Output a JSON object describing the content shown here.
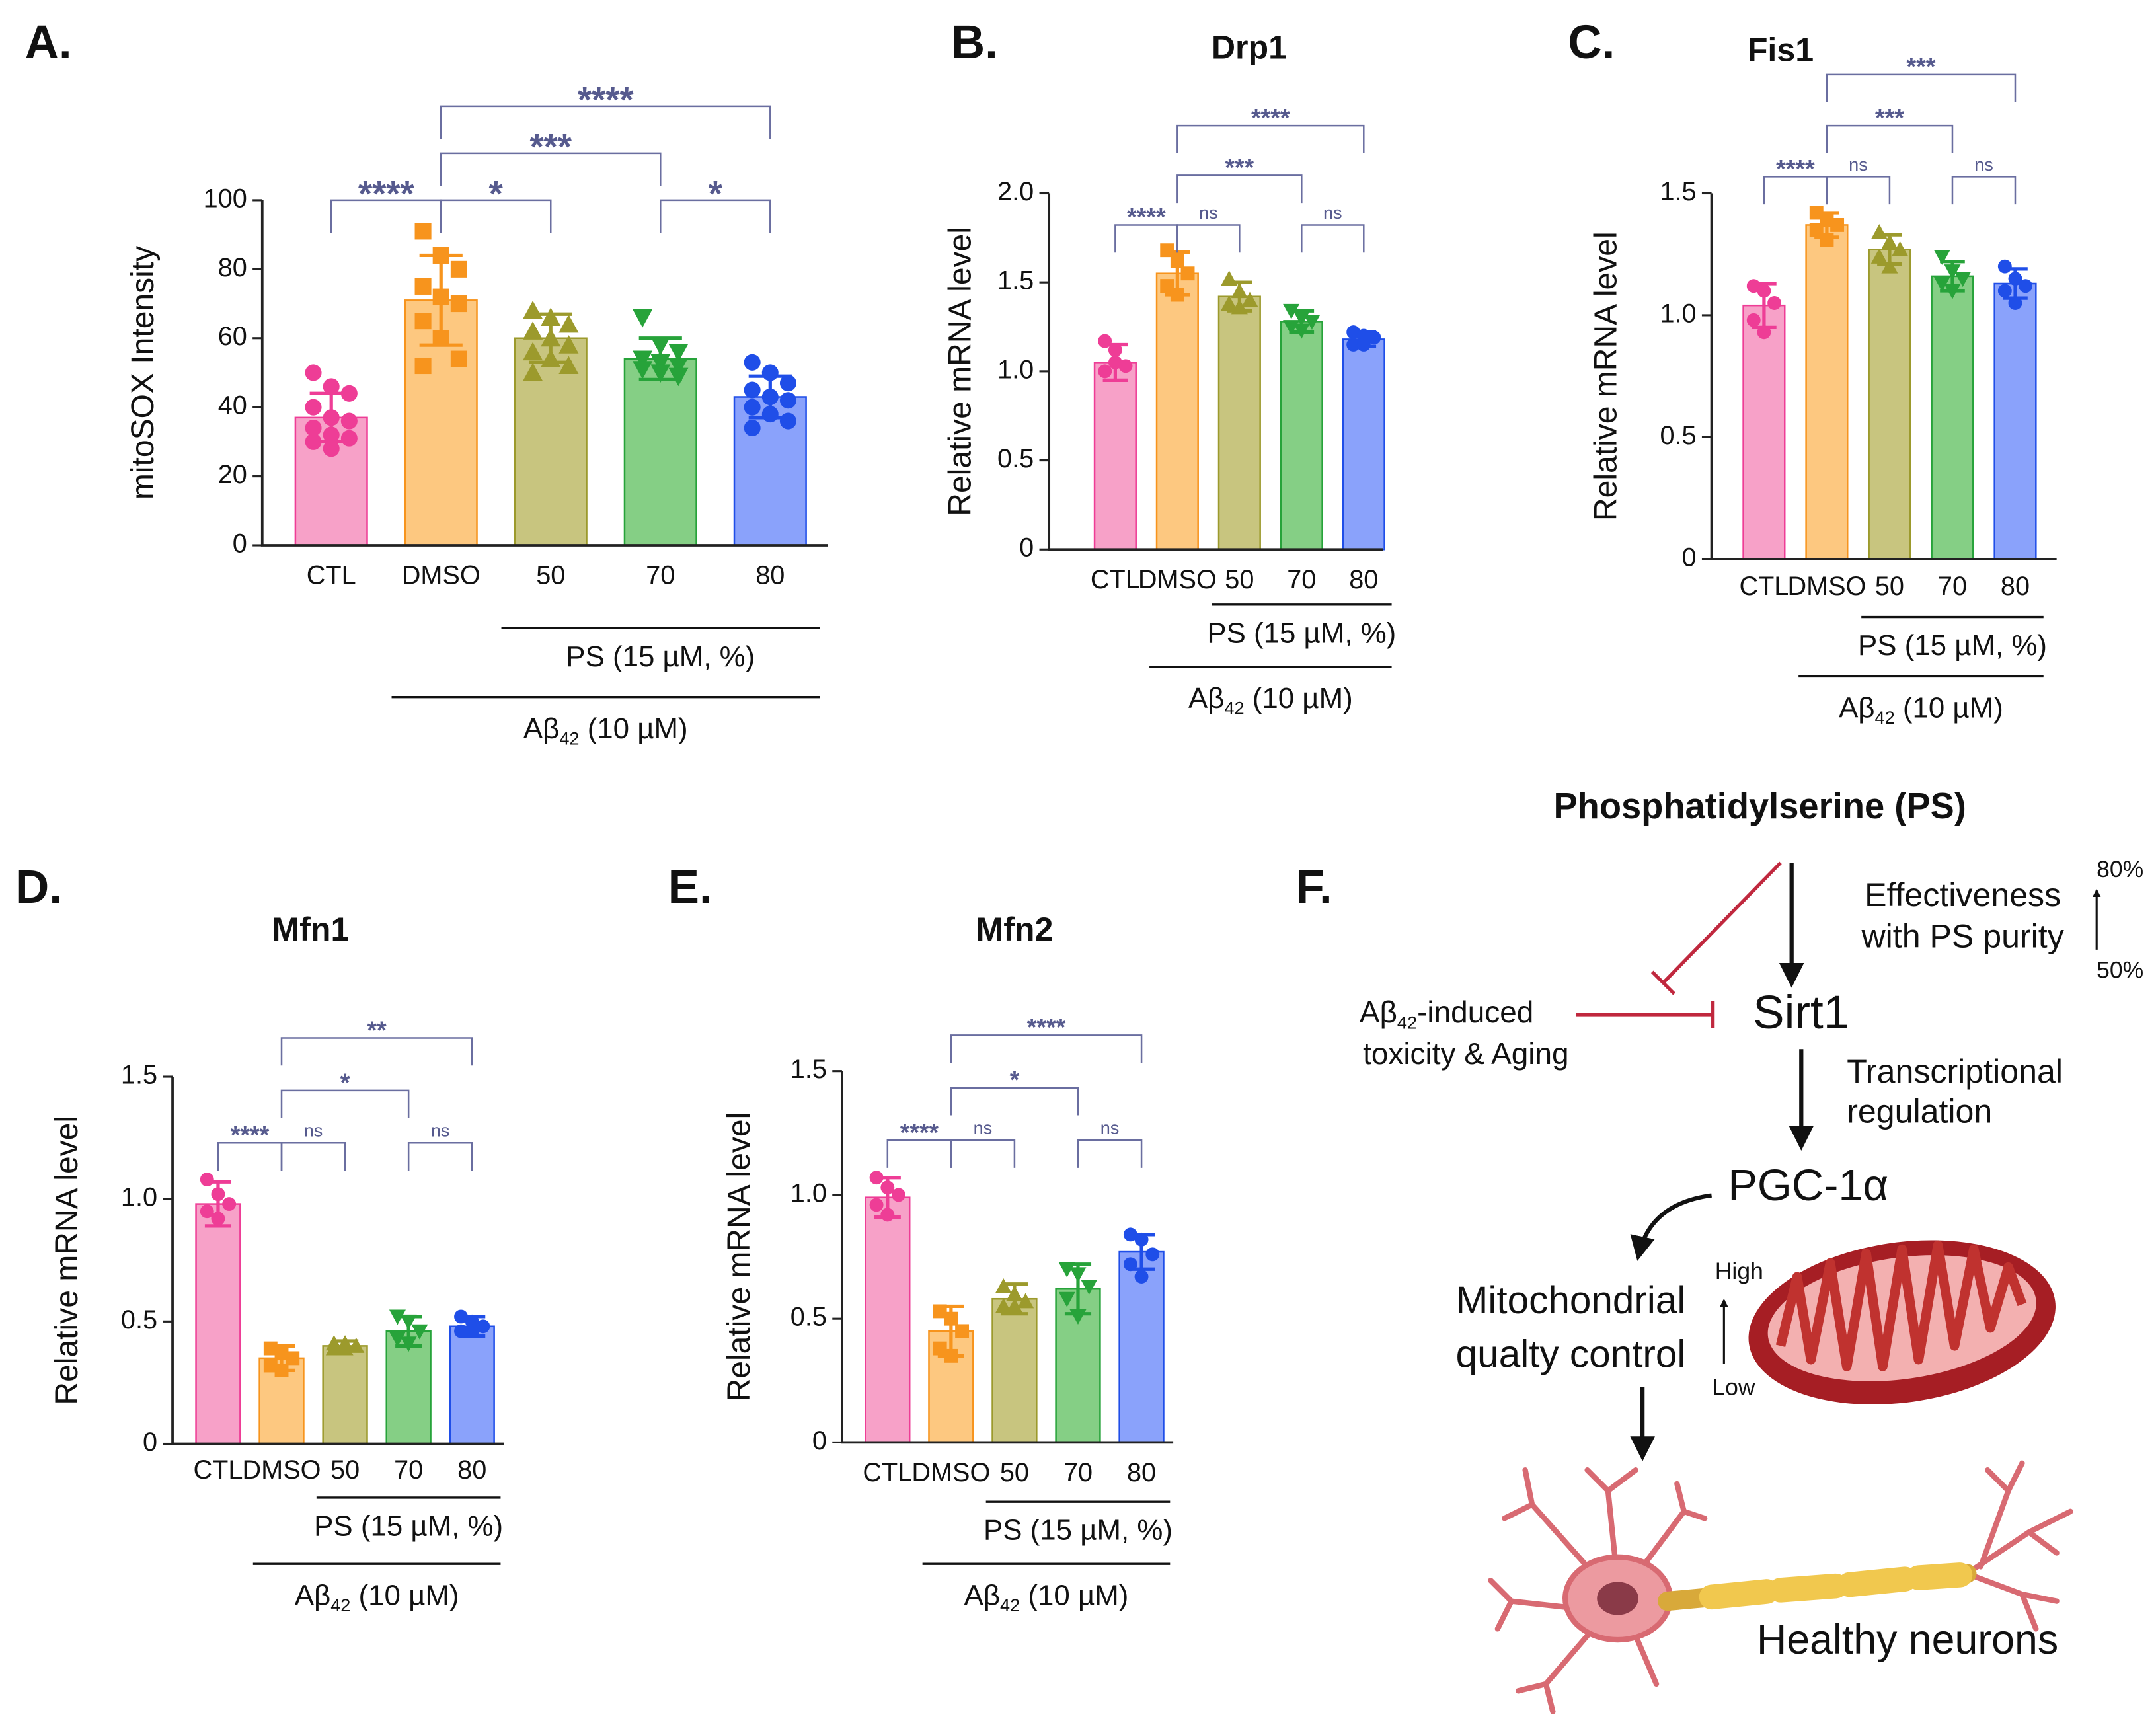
{
  "chart_data": [
    {
      "type": "bar",
      "panel_label": "A.",
      "y_label": "mitoSOX Intensity",
      "categories": [
        "CTL",
        "DMSO",
        "50",
        "70",
        "80"
      ],
      "values": [
        37,
        71,
        60,
        54,
        43
      ],
      "errors": [
        7,
        13,
        7,
        6,
        6
      ],
      "points": [
        [
          50,
          46,
          44,
          40,
          37,
          36,
          34,
          32,
          31,
          30,
          28
        ],
        [
          91,
          84,
          80,
          75,
          72,
          70,
          65,
          60,
          54,
          52
        ],
        [
          68,
          66,
          64,
          62,
          60,
          58,
          56,
          54,
          52,
          50
        ],
        [
          66,
          58,
          56,
          54,
          53,
          52,
          51,
          50,
          49
        ],
        [
          53,
          50,
          47,
          45,
          43,
          42,
          40,
          38,
          36,
          34
        ]
      ],
      "colors": [
        "#ee3d96",
        "#f7941d",
        "#9c9a2c",
        "#27a33a",
        "#1f4ee8"
      ],
      "fill_colors": [
        "#f7a1c8",
        "#fdc880",
        "#c8c57f",
        "#85cf85",
        "#8aa2fb"
      ],
      "markers": [
        "circle",
        "square",
        "triangle",
        "triangle-down",
        "circle"
      ],
      "ylim": [
        0,
        100
      ],
      "yticks": [
        0,
        20,
        40,
        60,
        80,
        100
      ],
      "comparisons": [
        {
          "pair": [
            0,
            1
          ],
          "label": "****"
        },
        {
          "pair": [
            1,
            2
          ],
          "label": "*"
        },
        {
          "pair": [
            3,
            4
          ],
          "label": "*"
        },
        {
          "pair": [
            1,
            3
          ],
          "label": "***"
        },
        {
          "pair": [
            1,
            4
          ],
          "label": "****"
        }
      ],
      "treatment": "PS (15 µM, %)",
      "vehicle": {
        "text": "Aβ",
        "sub": "42",
        "rest": " (10 µM)"
      }
    },
    {
      "type": "bar",
      "panel_label": "B.",
      "title": "Drp1",
      "y_label": "Relative mRNA level",
      "categories": [
        "CTL",
        "DMSO",
        "50",
        "70",
        "80"
      ],
      "values": [
        1.05,
        1.55,
        1.42,
        1.28,
        1.18
      ],
      "errors": [
        0.1,
        0.12,
        0.08,
        0.06,
        0.04
      ],
      "points": [
        [
          1.17,
          1.12,
          1.03,
          1.0,
          1.05
        ],
        [
          1.68,
          1.62,
          1.55,
          1.48,
          1.43
        ],
        [
          1.52,
          1.45,
          1.4,
          1.38,
          1.36
        ],
        [
          1.34,
          1.3,
          1.28,
          1.25,
          1.23
        ],
        [
          1.22,
          1.2,
          1.19,
          1.15,
          1.15
        ]
      ],
      "colors": [
        "#ee3d96",
        "#f7941d",
        "#9c9a2c",
        "#27a33a",
        "#1f4ee8"
      ],
      "fill_colors": [
        "#f7a1c8",
        "#fdc880",
        "#c8c57f",
        "#85cf85",
        "#8aa2fb"
      ],
      "markers": [
        "circle",
        "square",
        "triangle",
        "triangle-down",
        "circle"
      ],
      "ylim": [
        0,
        2
      ],
      "yticks": [
        0,
        0.5,
        {
          "value": 1,
          "label": "1.0"
        },
        1.5,
        {
          "value": 2,
          "label": "2.0"
        }
      ],
      "comparisons": [
        {
          "pair": [
            0,
            1
          ],
          "label": "****"
        },
        {
          "pair": [
            1,
            2
          ],
          "label": "ns"
        },
        {
          "pair": [
            3,
            4
          ],
          "label": "ns"
        },
        {
          "pair": [
            1,
            3
          ],
          "label": "***"
        },
        {
          "pair": [
            1,
            4
          ],
          "label": "****"
        }
      ],
      "treatment": "PS (15 µM, %)",
      "vehicle": {
        "text": "Aβ",
        "sub": "42",
        "rest": " (10 µM)"
      }
    },
    {
      "type": "bar",
      "panel_label": "C.",
      "title": "Fis1",
      "y_label": "Relative mRNA level",
      "categories": [
        "CTL",
        "DMSO",
        "50",
        "70",
        "80"
      ],
      "values": [
        1.04,
        1.37,
        1.27,
        1.16,
        1.13
      ],
      "errors": [
        0.09,
        0.05,
        0.06,
        0.06,
        0.06
      ],
      "points": [
        [
          1.12,
          1.1,
          1.05,
          0.98,
          0.93
        ],
        [
          1.42,
          1.39,
          1.37,
          1.35,
          1.31
        ],
        [
          1.34,
          1.3,
          1.27,
          1.24,
          1.2
        ],
        [
          1.24,
          1.18,
          1.15,
          1.13,
          1.1
        ],
        [
          1.2,
          1.15,
          1.12,
          1.1,
          1.05
        ]
      ],
      "colors": [
        "#ee3d96",
        "#f7941d",
        "#9c9a2c",
        "#27a33a",
        "#1f4ee8"
      ],
      "fill_colors": [
        "#f7a1c8",
        "#fdc880",
        "#c8c57f",
        "#85cf85",
        "#8aa2fb"
      ],
      "markers": [
        "circle",
        "square",
        "triangle",
        "triangle-down",
        "circle"
      ],
      "ylim": [
        0,
        1.5
      ],
      "yticks": [
        0,
        0.5,
        {
          "value": 1,
          "label": "1.0"
        },
        1.5
      ],
      "comparisons": [
        {
          "pair": [
            0,
            1
          ],
          "label": "****"
        },
        {
          "pair": [
            1,
            2
          ],
          "label": "ns"
        },
        {
          "pair": [
            3,
            4
          ],
          "label": "ns"
        },
        {
          "pair": [
            1,
            3
          ],
          "label": "***"
        },
        {
          "pair": [
            1,
            4
          ],
          "label": "***"
        }
      ],
      "treatment": "PS (15 µM, %)",
      "vehicle": {
        "text": "Aβ",
        "sub": "42",
        "rest": " (10 µM)"
      }
    },
    {
      "type": "bar",
      "panel_label": "D.",
      "title": "Mfn1",
      "y_label": "Relative mRNA level",
      "categories": [
        "CTL",
        "DMSO",
        "50",
        "70",
        "80"
      ],
      "values": [
        0.98,
        0.35,
        0.4,
        0.46,
        0.48
      ],
      "errors": [
        0.09,
        0.05,
        0.02,
        0.06,
        0.04
      ],
      "points": [
        [
          1.08,
          1.02,
          0.98,
          0.95,
          0.92
        ],
        [
          0.39,
          0.37,
          0.35,
          0.32,
          0.3
        ],
        [
          0.41,
          0.41,
          0.4,
          0.39,
          0.39
        ],
        [
          0.52,
          0.5,
          0.46,
          0.43,
          0.41
        ],
        [
          0.52,
          0.5,
          0.48,
          0.46,
          0.46
        ]
      ],
      "colors": [
        "#ee3d96",
        "#f7941d",
        "#9c9a2c",
        "#27a33a",
        "#1f4ee8"
      ],
      "fill_colors": [
        "#f7a1c8",
        "#fdc880",
        "#c8c57f",
        "#85cf85",
        "#8aa2fb"
      ],
      "markers": [
        "circle",
        "square",
        "triangle",
        "triangle-down",
        "circle"
      ],
      "ylim": [
        0,
        1.5
      ],
      "yticks": [
        0,
        0.5,
        {
          "value": 1,
          "label": "1.0"
        },
        1.5
      ],
      "comparisons": [
        {
          "pair": [
            0,
            1
          ],
          "label": "****"
        },
        {
          "pair": [
            1,
            2
          ],
          "label": "ns"
        },
        {
          "pair": [
            3,
            4
          ],
          "label": "ns"
        },
        {
          "pair": [
            1,
            3
          ],
          "label": "*"
        },
        {
          "pair": [
            1,
            4
          ],
          "label": "**"
        }
      ],
      "treatment": "PS (15 µM, %)",
      "vehicle": {
        "text": "Aβ",
        "sub": "42",
        "rest": " (10 µM)"
      }
    },
    {
      "type": "bar",
      "panel_label": "E.",
      "title": "Mfn2",
      "y_label": "Relative mRNA level",
      "categories": [
        "CTL",
        "DMSO",
        "50",
        "70",
        "80"
      ],
      "values": [
        0.99,
        0.45,
        0.58,
        0.62,
        0.77
      ],
      "errors": [
        0.08,
        0.1,
        0.06,
        0.1,
        0.07
      ],
      "points": [
        [
          1.07,
          1.03,
          1.0,
          0.96,
          0.92
        ],
        [
          0.53,
          0.5,
          0.45,
          0.38,
          0.35
        ],
        [
          0.63,
          0.6,
          0.57,
          0.55,
          0.55
        ],
        [
          0.7,
          0.68,
          0.63,
          0.58,
          0.51
        ],
        [
          0.84,
          0.82,
          0.76,
          0.72,
          0.67
        ]
      ],
      "colors": [
        "#ee3d96",
        "#f7941d",
        "#9c9a2c",
        "#27a33a",
        "#1f4ee8"
      ],
      "fill_colors": [
        "#f7a1c8",
        "#fdc880",
        "#c8c57f",
        "#85cf85",
        "#8aa2fb"
      ],
      "markers": [
        "circle",
        "square",
        "triangle",
        "triangle-down",
        "circle"
      ],
      "ylim": [
        0,
        1.5
      ],
      "yticks": [
        0,
        0.5,
        {
          "value": 1,
          "label": "1.0"
        },
        1.5
      ],
      "comparisons": [
        {
          "pair": [
            0,
            1
          ],
          "label": "****"
        },
        {
          "pair": [
            1,
            2
          ],
          "label": "ns"
        },
        {
          "pair": [
            3,
            4
          ],
          "label": "ns"
        },
        {
          "pair": [
            1,
            3
          ],
          "label": "*"
        },
        {
          "pair": [
            1,
            4
          ],
          "label": "****"
        }
      ],
      "treatment": "PS (15 µM, %)",
      "vehicle": {
        "text": "Aβ",
        "sub": "42",
        "rest": " (10 µM)"
      }
    }
  ],
  "diagram": {
    "panel_label": "F.",
    "source": "Phosphatidylserine (PS)",
    "effect": [
      "Effectiveness",
      "with PS purity"
    ],
    "purity_high": "80%",
    "purity_low": "50%",
    "target": "Sirt1",
    "stressor": {
      "text": "Aβ",
      "sub": "42",
      "rest": "-induced"
    },
    "stressor_2": "toxicity & Aging",
    "mechanism": [
      "Transcriptional",
      "regulation"
    ],
    "effector": "PGC-1α",
    "process": [
      "Mitochondrial",
      "qualty control"
    ],
    "level_high": "High",
    "level_low": "Low",
    "outcome": "Healthy neurons"
  }
}
